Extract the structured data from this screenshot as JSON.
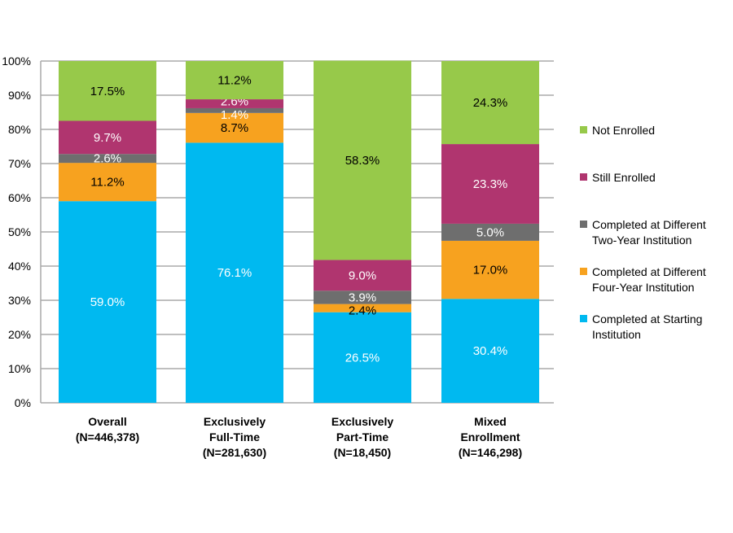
{
  "chart_data": {
    "type": "bar",
    "stacked": true,
    "categories": [
      [
        "Overall",
        "(N=446,378)"
      ],
      [
        "Exclusively",
        "Full-Time",
        "(N=281,630)"
      ],
      [
        "Exclusively",
        "Part-Time",
        "(N=18,450)"
      ],
      [
        "Mixed",
        "Enrollment",
        "(N=146,298)"
      ]
    ],
    "series": [
      {
        "name": "Completed at Starting Institution",
        "color": "#00b9f0",
        "label_color": "#ffffff",
        "values": [
          59.0,
          76.1,
          26.5,
          30.4
        ]
      },
      {
        "name": "Completed at Different Four-Year Institution",
        "color": "#f7a21f",
        "label_color": "#000000",
        "values": [
          11.2,
          8.7,
          2.4,
          17.0
        ]
      },
      {
        "name": "Completed at Different Two-Year Institution",
        "color": "#6e6e6e",
        "label_color": "#ffffff",
        "values": [
          2.6,
          1.4,
          3.9,
          5.0
        ]
      },
      {
        "name": "Still Enrolled",
        "color": "#b0356f",
        "label_color": "#ffffff",
        "values": [
          9.7,
          2.6,
          9.0,
          23.3
        ]
      },
      {
        "name": "Not Enrolled",
        "color": "#97c94a",
        "label_color": "#000000",
        "values": [
          17.5,
          11.2,
          58.3,
          24.3
        ]
      }
    ],
    "legend_lines": [
      [
        "Not Enrolled"
      ],
      [
        "Still Enrolled"
      ],
      [
        "Completed at Different",
        "Two-Year Institution"
      ],
      [
        "Completed at Different",
        "Four-Year Institution"
      ],
      [
        "Completed at Starting",
        "Institution"
      ]
    ],
    "yticks": [
      "0%",
      "10%",
      "20%",
      "30%",
      "40%",
      "50%",
      "60%",
      "70%",
      "80%",
      "90%",
      "100%"
    ],
    "ylim": [
      0,
      100
    ],
    "grid": true,
    "legend_position": "right",
    "title": "",
    "xlabel": "",
    "ylabel": ""
  }
}
